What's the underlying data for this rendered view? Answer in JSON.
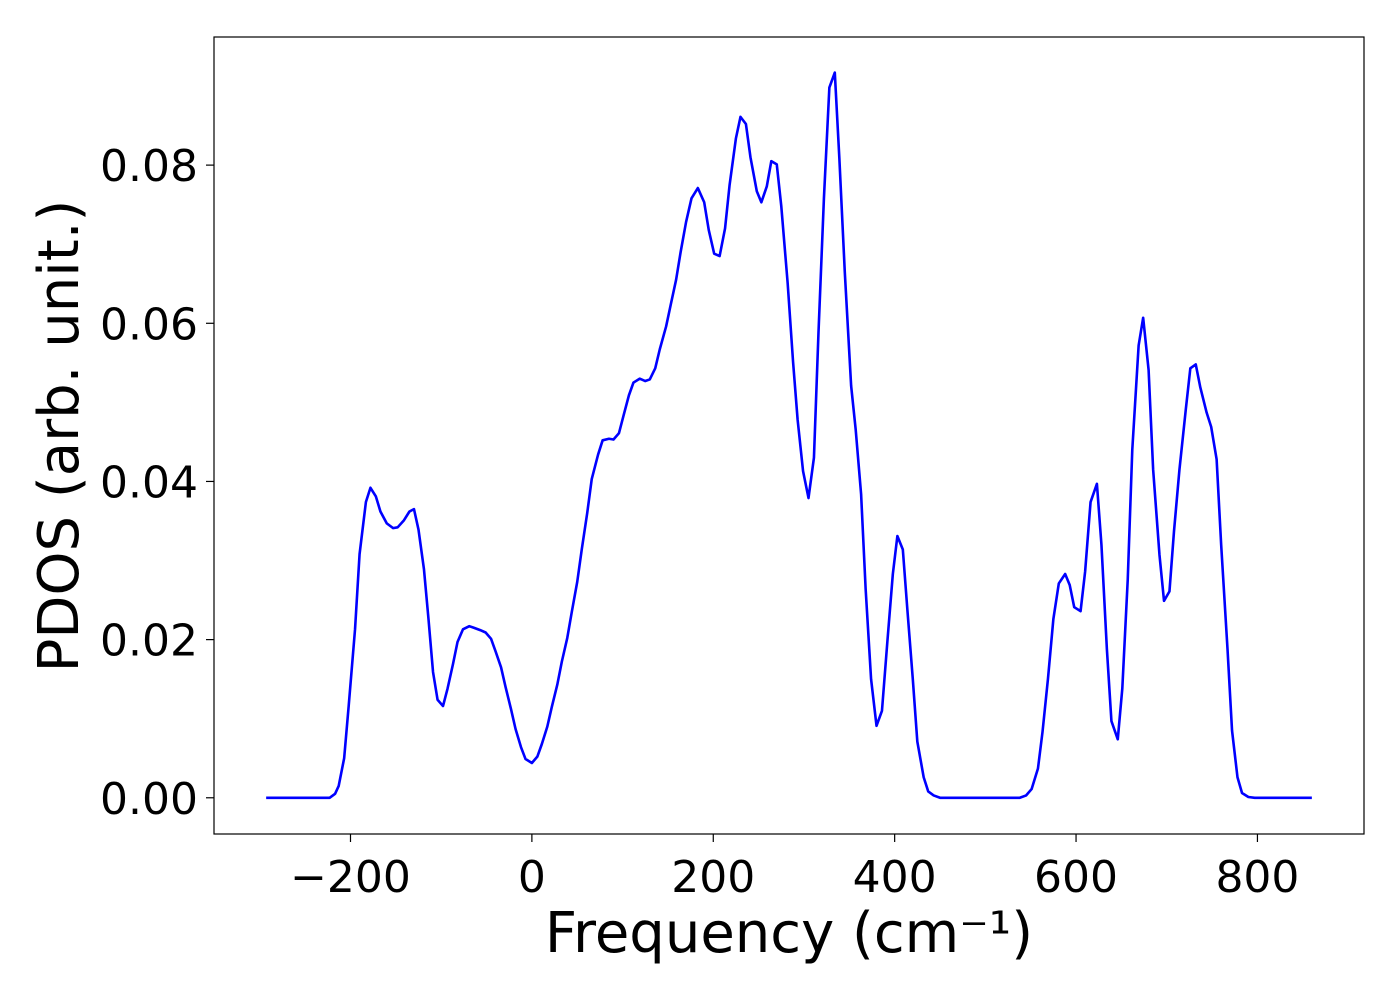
{
  "chart_data": {
    "type": "line",
    "xlabel": "Frequency (cm⁻¹)",
    "ylabel": "PDOS (arb. unit.)",
    "color": "#0000ff",
    "xlim": [
      -350.5,
      917.5
    ],
    "ylim": [
      -0.00458,
      0.0962
    ],
    "xticks": [
      {
        "value": -200,
        "label": "−200"
      },
      0,
      200,
      400,
      600,
      800
    ],
    "yticks": [
      {
        "value": 0,
        "label": "0.00"
      },
      {
        "value": 0.02,
        "label": "0.02"
      },
      {
        "value": 0.04,
        "label": "0.04"
      },
      {
        "value": 0.06,
        "label": "0.06"
      },
      {
        "value": 0.08,
        "label": "0.08"
      }
    ],
    "x": [
      -293,
      -223,
      -217,
      -213,
      -207,
      -202,
      -195,
      -190,
      -183,
      -178,
      -172,
      -167,
      -160,
      -153,
      -148,
      -141,
      -135,
      -130,
      -125,
      -119,
      -114,
      -109,
      -104,
      -98,
      -93,
      -87,
      -82,
      -76,
      -69,
      -64,
      -57,
      -51,
      -45,
      -40,
      -34,
      -29,
      -23,
      -18,
      -12,
      -7,
      0,
      6,
      11,
      17,
      22,
      28,
      33,
      39,
      44,
      50,
      55,
      61,
      66,
      73,
      78,
      85,
      90,
      96,
      101,
      107,
      112,
      119,
      125,
      130,
      136,
      141,
      148,
      153,
      159,
      164,
      170,
      176,
      183,
      190,
      195,
      201,
      207,
      213,
      218,
      225,
      230,
      236,
      241,
      248,
      253,
      259,
      264,
      270,
      275,
      282,
      288,
      293,
      299,
      305,
      311,
      316,
      322,
      328,
      334,
      339,
      345,
      352,
      357,
      363,
      368,
      374,
      380,
      386,
      392,
      398,
      403,
      409,
      414,
      420,
      425,
      432,
      437,
      443,
      450,
      538,
      545,
      551,
      558,
      563,
      569,
      575,
      581,
      588,
      593,
      598,
      605,
      610,
      616,
      623,
      628,
      634,
      639,
      646,
      651,
      657,
      662,
      669,
      674,
      680,
      685,
      692,
      697,
      703,
      708,
      714,
      721,
      726,
      732,
      737,
      744,
      749,
      755,
      760,
      767,
      772,
      778,
      783,
      790,
      797,
      860
    ],
    "values": [
      0,
      0,
      0.0005,
      0.0015,
      0.005,
      0.0116,
      0.0213,
      0.0308,
      0.0374,
      0.0392,
      0.0381,
      0.0362,
      0.0347,
      0.0341,
      0.0342,
      0.0351,
      0.0362,
      0.0365,
      0.0339,
      0.0289,
      0.0226,
      0.0159,
      0.0124,
      0.0116,
      0.0138,
      0.0169,
      0.0197,
      0.0213,
      0.0217,
      0.0215,
      0.0212,
      0.0209,
      0.0201,
      0.0185,
      0.0165,
      0.014,
      0.0112,
      0.0087,
      0.0064,
      0.0049,
      0.0044,
      0.0052,
      0.0068,
      0.009,
      0.0115,
      0.0143,
      0.0172,
      0.0202,
      0.0235,
      0.0273,
      0.0314,
      0.036,
      0.0403,
      0.0434,
      0.0452,
      0.0454,
      0.0453,
      0.0461,
      0.0483,
      0.0509,
      0.0525,
      0.053,
      0.0527,
      0.0529,
      0.0543,
      0.0567,
      0.0596,
      0.0623,
      0.0655,
      0.069,
      0.0728,
      0.0758,
      0.0771,
      0.0753,
      0.0718,
      0.0688,
      0.0685,
      0.072,
      0.0775,
      0.0834,
      0.0861,
      0.0852,
      0.081,
      0.0767,
      0.0753,
      0.0773,
      0.0805,
      0.0801,
      0.0748,
      0.0651,
      0.0551,
      0.0478,
      0.0413,
      0.0379,
      0.043,
      0.0588,
      0.0758,
      0.0898,
      0.0917,
      0.0809,
      0.0665,
      0.0521,
      0.0466,
      0.0384,
      0.0264,
      0.015,
      0.0091,
      0.011,
      0.0198,
      0.0283,
      0.0331,
      0.0314,
      0.0238,
      0.015,
      0.0071,
      0.0026,
      0.0008,
      0.0003,
      0,
      0,
      0.0003,
      0.0011,
      0.0037,
      0.0083,
      0.015,
      0.0226,
      0.0271,
      0.0283,
      0.0269,
      0.0241,
      0.0236,
      0.0286,
      0.0374,
      0.0397,
      0.032,
      0.0188,
      0.0097,
      0.0074,
      0.0138,
      0.0276,
      0.044,
      0.0572,
      0.0607,
      0.0541,
      0.0415,
      0.0307,
      0.0249,
      0.0261,
      0.0337,
      0.0415,
      0.0491,
      0.0543,
      0.0548,
      0.0519,
      0.0487,
      0.0469,
      0.0428,
      0.032,
      0.0188,
      0.0085,
      0.0026,
      0.0006,
      0.0001,
      0,
      0
    ]
  }
}
